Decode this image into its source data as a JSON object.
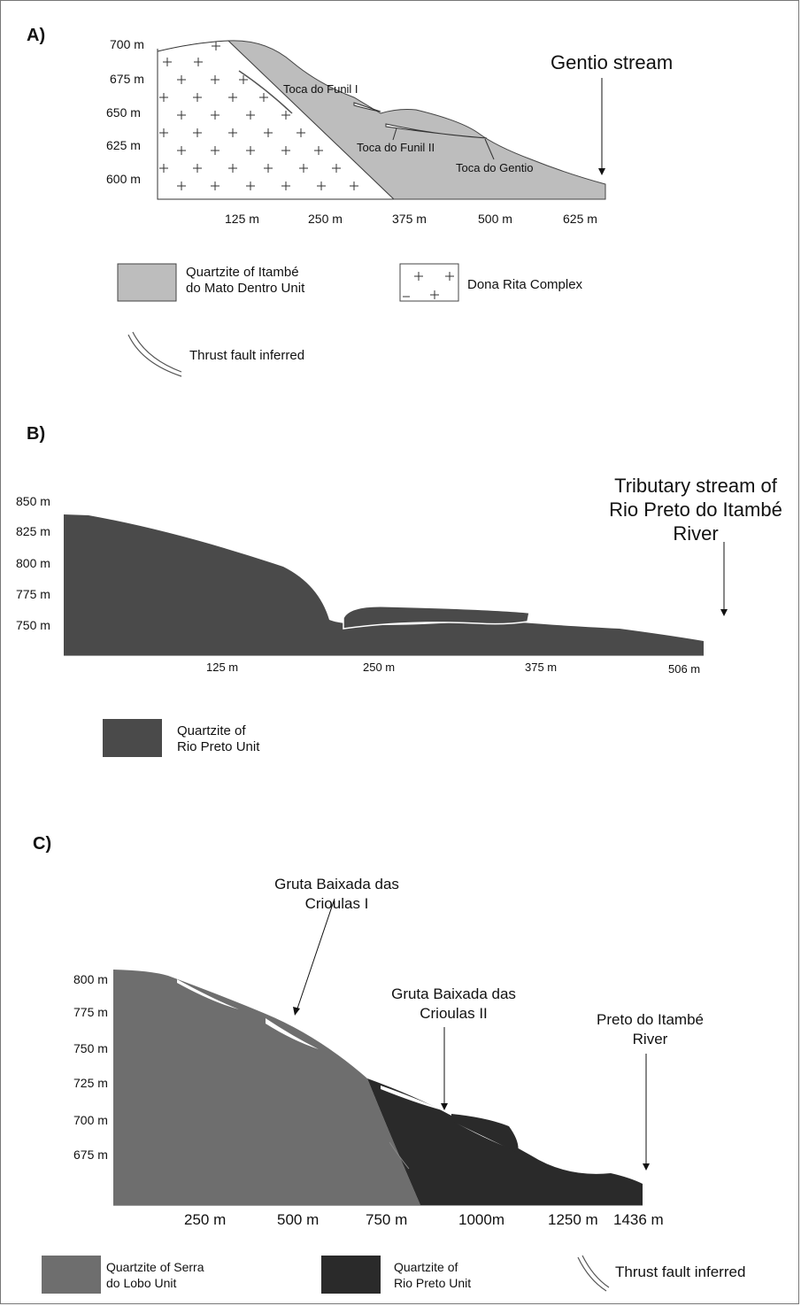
{
  "panel_a": {
    "letter": "A)",
    "y_ticks": [
      "700 m",
      "675 m",
      "650 m",
      "625 m",
      "600 m"
    ],
    "x_ticks": [
      "125 m",
      "250 m",
      "375 m",
      "500 m",
      "625 m"
    ],
    "stream_label": "Gentio stream",
    "caves": [
      "Toca do Funil I",
      "Toca do Funil II",
      "Toca do Gentio"
    ],
    "legend": {
      "quartzite": "Quartzite of Itambé\ndo Mato Dentro Unit",
      "complex": "Dona Rita Complex",
      "fault": "Thrust fault inferred"
    },
    "colors": {
      "quartzite": "#bdbdbd",
      "complex": "#ffffff"
    }
  },
  "panel_b": {
    "letter": "B)",
    "y_ticks": [
      "850 m",
      "825 m",
      "800 m",
      "775 m",
      "750 m"
    ],
    "x_ticks": [
      "125 m",
      "250 m",
      "375 m",
      "506 m"
    ],
    "stream_label": "Tributary stream of\nRio Preto do Itambé\nRiver",
    "legend": {
      "quartzite": "Quartzite of\nRio Preto Unit"
    },
    "colors": {
      "quartzite": "#4a4a4a"
    }
  },
  "panel_c": {
    "letter": "C)",
    "y_ticks": [
      "800 m",
      "775 m",
      "750 m",
      "725 m",
      "700 m",
      "675 m"
    ],
    "x_ticks": [
      "250 m",
      "500 m",
      "750 m",
      "1000m",
      "1250 m",
      "1436 m"
    ],
    "cave_1": "Gruta Baixada das\nCrioulas I",
    "cave_2": "Gruta Baixada das\nCrioulas II",
    "river": "Preto do Itambé\nRiver",
    "legend": {
      "serra": "Quartzite of Serra\ndo Lobo Unit",
      "rio_preto": "Quartzite of\nRio Preto Unit",
      "fault": "Thrust fault inferred"
    },
    "colors": {
      "serra": "#6e6e6e",
      "rio_preto": "#2a2a2a"
    }
  }
}
